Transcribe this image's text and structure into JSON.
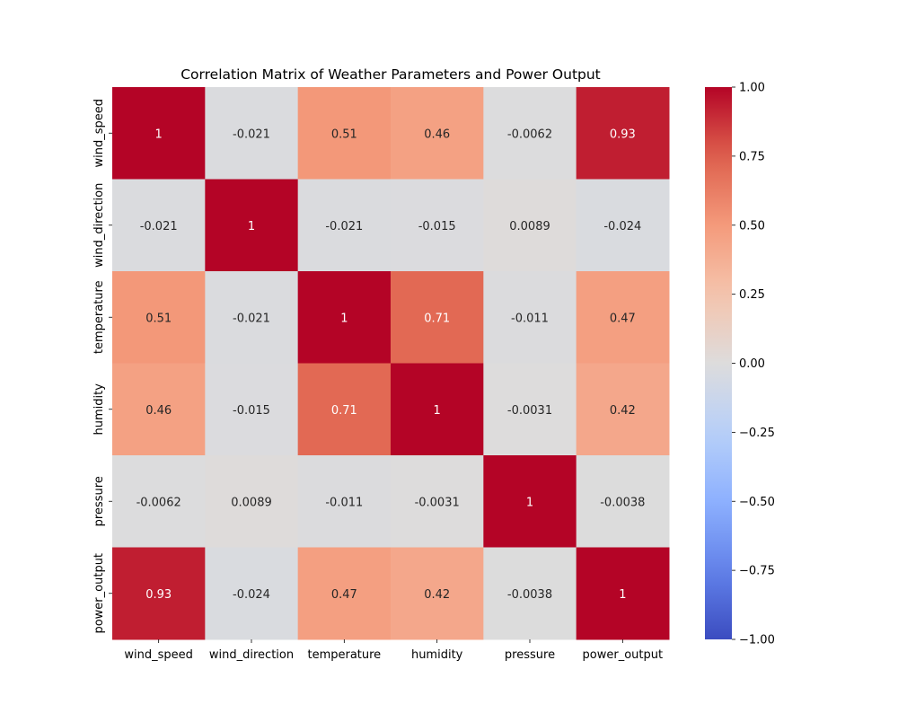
{
  "chart_data": {
    "type": "heatmap",
    "title": "Correlation Matrix of Weather Parameters and Power Output",
    "row_labels": [
      "wind_speed",
      "wind_direction",
      "temperature",
      "humidity",
      "pressure",
      "power_output"
    ],
    "col_labels": [
      "wind_speed",
      "wind_direction",
      "temperature",
      "humidity",
      "pressure",
      "power_output"
    ],
    "values": [
      [
        1,
        -0.021,
        0.51,
        0.46,
        -0.0062,
        0.93
      ],
      [
        -0.021,
        1,
        -0.021,
        -0.015,
        0.0089,
        -0.024
      ],
      [
        0.51,
        -0.021,
        1,
        0.71,
        -0.011,
        0.47
      ],
      [
        0.46,
        -0.015,
        0.71,
        1,
        -0.0031,
        0.42
      ],
      [
        -0.0062,
        0.0089,
        -0.011,
        -0.0031,
        1,
        -0.0038
      ],
      [
        0.93,
        -0.024,
        0.47,
        0.42,
        -0.0038,
        1
      ]
    ],
    "annotations": [
      [
        "1",
        "-0.021",
        "0.51",
        "0.46",
        "-0.0062",
        "0.93"
      ],
      [
        "-0.021",
        "1",
        "-0.021",
        "-0.015",
        "0.0089",
        "-0.024"
      ],
      [
        "0.51",
        "-0.021",
        "1",
        "0.71",
        "-0.011",
        "0.47"
      ],
      [
        "0.46",
        "-0.015",
        "0.71",
        "1",
        "-0.0031",
        "0.42"
      ],
      [
        "-0.0062",
        "0.0089",
        "-0.011",
        "-0.0031",
        "1",
        "-0.0038"
      ],
      [
        "0.93",
        "-0.024",
        "0.47",
        "0.42",
        "-0.0038",
        "1"
      ]
    ],
    "colormap": "coolwarm",
    "vmin": -1,
    "vmax": 1,
    "colorbar_ticks": [
      1,
      0.75,
      0.5,
      0.25,
      0,
      -0.25,
      -0.5,
      -0.75,
      -1
    ],
    "colorbar_tick_labels": [
      "1.00",
      "0.75",
      "0.50",
      "0.25",
      "0.00",
      "−0.25",
      "−0.50",
      "−0.75",
      "−1.00"
    ],
    "grid": false
  }
}
